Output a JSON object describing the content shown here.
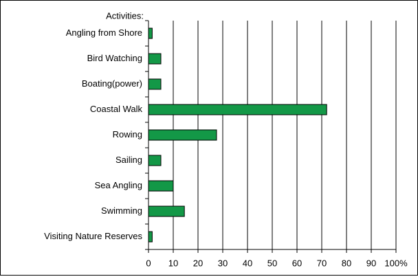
{
  "chart_data": {
    "type": "hbar",
    "y_label": "Activities:",
    "categories": [
      "Angling from Shore",
      "Bird Watching",
      "Boating(power)",
      "Coastal Walk",
      "Rowing",
      "Sailing",
      "Sea Angling",
      "Swimming",
      "Visiting Nature Reserves"
    ],
    "values": [
      1.5,
      5,
      5,
      72,
      27.5,
      5,
      10,
      14.5,
      1.5
    ],
    "color": "#139847",
    "xlim": [
      0,
      100
    ],
    "xticks": [
      0,
      10,
      20,
      30,
      40,
      50,
      60,
      70,
      80,
      90,
      {
        "value": 100,
        "label": "100%"
      }
    ],
    "grid": true
  }
}
